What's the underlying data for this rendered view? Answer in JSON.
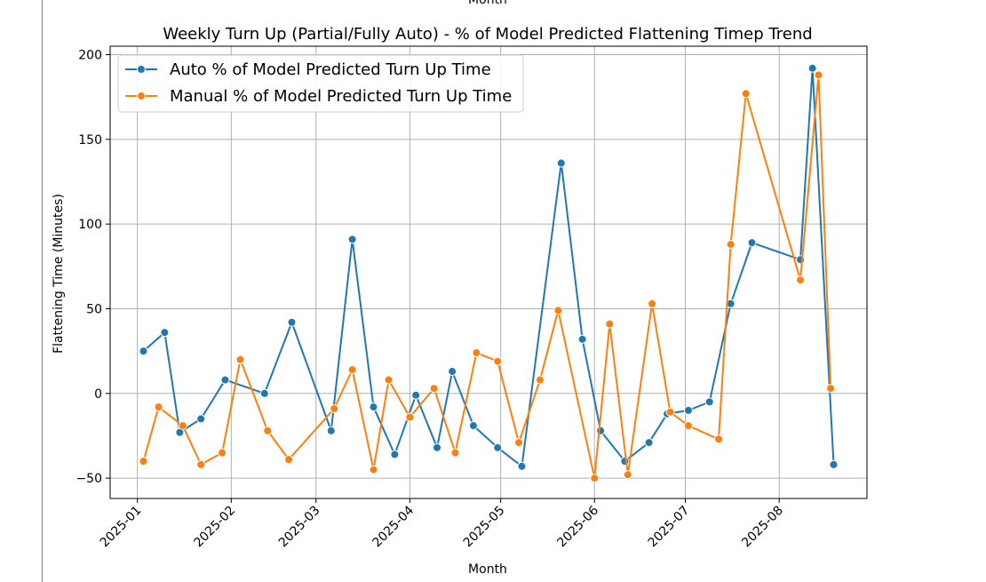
{
  "chart_data": {
    "type": "line",
    "title": "Weekly Turn Up (Partial/Fully Auto) - % of Model Predicted Flattening Timep Trend",
    "top_cut_label": "Month",
    "xlabel": "Month",
    "ylabel": "Flattening Time (Minutes)",
    "ylim": [
      -62,
      205
    ],
    "xlim": [
      "2024-12-23",
      "2025-08-30"
    ],
    "yticks": [
      -50,
      0,
      50,
      100,
      150,
      200
    ],
    "xticks": [
      "2025-01-01",
      "2025-02-01",
      "2025-03-01",
      "2025-04-01",
      "2025-05-01",
      "2025-06-01",
      "2025-07-01",
      "2025-08-01"
    ],
    "xtick_labels": [
      "2025-01",
      "2025-02",
      "2025-03",
      "2025-04",
      "2025-05",
      "2025-06",
      "2025-07",
      "2025-08"
    ],
    "grid": true,
    "legend_position": "top-left",
    "series": [
      {
        "name": "Auto % of Model Predicted Turn Up Time",
        "color": "#1f77b4",
        "points": [
          {
            "x": "2025-01-03",
            "y": 25
          },
          {
            "x": "2025-01-10",
            "y": 36
          },
          {
            "x": "2025-01-15",
            "y": -23
          },
          {
            "x": "2025-01-22",
            "y": -15
          },
          {
            "x": "2025-01-30",
            "y": 8
          },
          {
            "x": "2025-02-12",
            "y": 0
          },
          {
            "x": "2025-02-21",
            "y": 42
          },
          {
            "x": "2025-03-06",
            "y": -22
          },
          {
            "x": "2025-03-13",
            "y": 91
          },
          {
            "x": "2025-03-20",
            "y": -8
          },
          {
            "x": "2025-03-27",
            "y": -36
          },
          {
            "x": "2025-04-03",
            "y": -1
          },
          {
            "x": "2025-04-10",
            "y": -32
          },
          {
            "x": "2025-04-15",
            "y": 13
          },
          {
            "x": "2025-04-22",
            "y": -19
          },
          {
            "x": "2025-04-30",
            "y": -32
          },
          {
            "x": "2025-05-08",
            "y": -43
          },
          {
            "x": "2025-05-21",
            "y": 136
          },
          {
            "x": "2025-05-28",
            "y": 32
          },
          {
            "x": "2025-06-03",
            "y": -22
          },
          {
            "x": "2025-06-11",
            "y": -40
          },
          {
            "x": "2025-06-19",
            "y": -29
          },
          {
            "x": "2025-06-25",
            "y": -12
          },
          {
            "x": "2025-07-02",
            "y": -10
          },
          {
            "x": "2025-07-09",
            "y": -5
          },
          {
            "x": "2025-07-16",
            "y": 53
          },
          {
            "x": "2025-07-23",
            "y": 89
          },
          {
            "x": "2025-08-08",
            "y": 79
          },
          {
            "x": "2025-08-12",
            "y": 192
          },
          {
            "x": "2025-08-19",
            "y": -42
          }
        ]
      },
      {
        "name": "Manual % of Model Predicted Turn Up Time",
        "color": "#ff7f0e",
        "points": [
          {
            "x": "2025-01-03",
            "y": -40
          },
          {
            "x": "2025-01-08",
            "y": -8
          },
          {
            "x": "2025-01-16",
            "y": -19
          },
          {
            "x": "2025-01-22",
            "y": -42
          },
          {
            "x": "2025-01-29",
            "y": -35
          },
          {
            "x": "2025-02-04",
            "y": 20
          },
          {
            "x": "2025-02-13",
            "y": -22
          },
          {
            "x": "2025-02-20",
            "y": -39
          },
          {
            "x": "2025-03-07",
            "y": -9
          },
          {
            "x": "2025-03-13",
            "y": 14
          },
          {
            "x": "2025-03-20",
            "y": -45
          },
          {
            "x": "2025-03-25",
            "y": 8
          },
          {
            "x": "2025-04-01",
            "y": -14
          },
          {
            "x": "2025-04-09",
            "y": 3
          },
          {
            "x": "2025-04-16",
            "y": -35
          },
          {
            "x": "2025-04-23",
            "y": 24
          },
          {
            "x": "2025-04-30",
            "y": 19
          },
          {
            "x": "2025-05-07",
            "y": -29
          },
          {
            "x": "2025-05-14",
            "y": 8
          },
          {
            "x": "2025-05-20",
            "y": 49
          },
          {
            "x": "2025-06-01",
            "y": -50
          },
          {
            "x": "2025-06-06",
            "y": 41
          },
          {
            "x": "2025-06-12",
            "y": -48
          },
          {
            "x": "2025-06-20",
            "y": 53
          },
          {
            "x": "2025-06-26",
            "y": -11
          },
          {
            "x": "2025-07-02",
            "y": -19
          },
          {
            "x": "2025-07-12",
            "y": -27
          },
          {
            "x": "2025-07-16",
            "y": 88
          },
          {
            "x": "2025-07-21",
            "y": 177
          },
          {
            "x": "2025-08-08",
            "y": 67
          },
          {
            "x": "2025-08-14",
            "y": 188
          },
          {
            "x": "2025-08-18",
            "y": 3
          }
        ]
      }
    ]
  }
}
